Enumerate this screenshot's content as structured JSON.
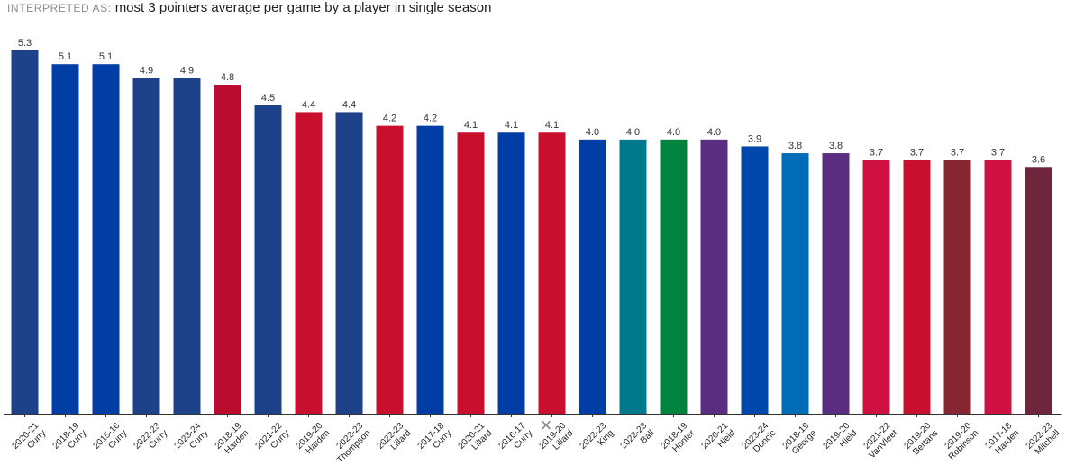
{
  "header": {
    "interpreted_label": "INTERPRETED AS:",
    "query": "most 3 pointers average per game by a player in single season"
  },
  "overlay": {
    "close_icon": "close-icon",
    "close_glyph": "×"
  },
  "chart_data": {
    "type": "bar",
    "title": "",
    "xlabel": "",
    "ylabel": "",
    "ylim": [
      0,
      5.3
    ],
    "grid": false,
    "categories": [
      [
        "2020-21",
        "Curry"
      ],
      [
        "2018-19",
        "Curry"
      ],
      [
        "2015-16",
        "Curry"
      ],
      [
        "2022-23",
        "Curry"
      ],
      [
        "2023-24",
        "Curry"
      ],
      [
        "2018-19",
        "Harden"
      ],
      [
        "2021-22",
        "Curry"
      ],
      [
        "2019-20",
        "Harden"
      ],
      [
        "2022-23",
        "Thompson"
      ],
      [
        "2022-23",
        "Lillard"
      ],
      [
        "2017-18",
        "Curry"
      ],
      [
        "2020-21",
        "Lillard"
      ],
      [
        "2016-17",
        "Curry"
      ],
      [
        "2019-20",
        "Lillard"
      ],
      [
        "2022-23",
        "King"
      ],
      [
        "2022-23",
        "Ball"
      ],
      [
        "2018-19",
        "Hunter"
      ],
      [
        "2020-21",
        "Hield"
      ],
      [
        "2023-24",
        "Doncic"
      ],
      [
        "2018-19",
        "George"
      ],
      [
        "2019-20",
        "Hield"
      ],
      [
        "2021-22",
        "VanVleet"
      ],
      [
        "2019-20",
        "Bertans"
      ],
      [
        "2019-20",
        "Robinson"
      ],
      [
        "2017-18",
        "Harden"
      ],
      [
        "2022-23",
        "Mitchell"
      ]
    ],
    "values": [
      5.3,
      5.1,
      5.1,
      4.9,
      4.9,
      4.8,
      4.5,
      4.4,
      4.4,
      4.2,
      4.2,
      4.1,
      4.1,
      4.1,
      4.0,
      4.0,
      4.0,
      4.0,
      3.9,
      3.8,
      3.8,
      3.7,
      3.7,
      3.7,
      3.7,
      3.6
    ],
    "value_labels": [
      "5.3",
      "5.1",
      "5.1",
      "4.9",
      "4.9",
      "4.8",
      "4.5",
      "4.4",
      "4.4",
      "4.2",
      "4.2",
      "4.1",
      "4.1",
      "4.1",
      "4.0",
      "4.0",
      "4.0",
      "4.0",
      "3.9",
      "3.8",
      "3.8",
      "3.7",
      "3.7",
      "3.7",
      "3.7",
      "3.6"
    ],
    "colors": [
      "#1d428a",
      "#003da5",
      "#003da5",
      "#1d428a",
      "#1d428a",
      "#ba0c2f",
      "#1d428a",
      "#c8102e",
      "#1d428a",
      "#c8102e",
      "#003da5",
      "#c8102e",
      "#003da5",
      "#c8102e",
      "#003da5",
      "#00788c",
      "#00843d",
      "#5a2d81",
      "#0047ab",
      "#006bb6",
      "#5a2d81",
      "#ce1141",
      "#c8102e",
      "#862633",
      "#ce1141",
      "#6f263d"
    ]
  }
}
